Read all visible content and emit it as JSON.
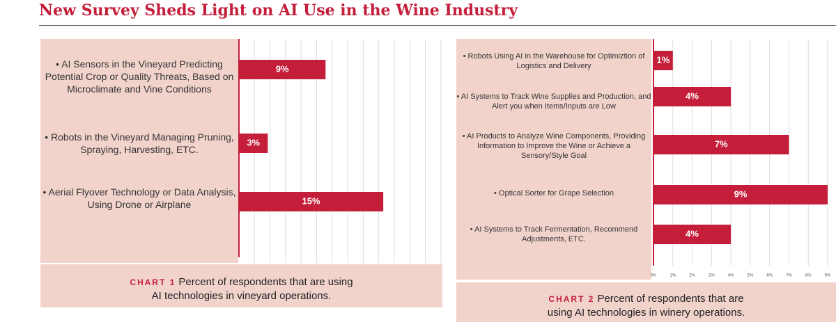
{
  "title": "New Survey Sheds Light on AI Use in the Wine Industry",
  "chart_data": [
    {
      "type": "bar",
      "orientation": "horizontal",
      "chart_label": "CHART 1",
      "caption": "Percent of respondents that are using AI technologies in vineyard operations.",
      "categories": [
        "• AI Sensors in the Vineyard Predicting Potential Crop or Quality Threats, Based on Microclimate and Vine Conditions",
        "• Robots in the Vineyard Managing Pruning, Spraying, Harvesting, ETC.",
        "• Aerial Flyover Technology or Data Analysis, Using Drone or Airplane"
      ],
      "values": [
        9,
        3,
        15
      ],
      "value_labels": [
        "9%",
        "3%",
        "15%"
      ],
      "color": "#c41e3a",
      "xlim": [
        0,
        21
      ]
    },
    {
      "type": "bar",
      "orientation": "horizontal",
      "chart_label": "CHART 2",
      "caption": "Percent of respondents that are using AI technologies in winery operations.",
      "categories": [
        "• Robots Using AI in the Warehouse for Optimiztion of Logistics and Delivery",
        "• AI Systems to Track Wine Supplies and Production, and Alert you when Items/Inputs are Low",
        "• AI Products to Analyze Wine Components, Providing Information to Improve the Wine or Achieve a Sensory/Style Goal",
        "• Optical Sorter for Grape Selection",
        "• AI Systems to Track Fermentation, Recommend Adjustments, ETC."
      ],
      "values": [
        1,
        4,
        7,
        9,
        4
      ],
      "value_labels": [
        "1%",
        "4%",
        "7%",
        "9%",
        "4%"
      ],
      "color": "#c41e3a",
      "xlim": [
        0,
        9
      ],
      "grid": true,
      "xticks": [
        {
          "value": 0,
          "label": "0%"
        },
        {
          "value": 1,
          "label": "1%"
        },
        {
          "value": 2,
          "label": "2%"
        },
        {
          "value": 3,
          "label": "3%"
        },
        {
          "value": 4,
          "label": "4%"
        },
        {
          "value": 5,
          "label": "5%"
        },
        {
          "value": 6,
          "label": "6%"
        },
        {
          "value": 7,
          "label": "7%"
        },
        {
          "value": 8,
          "label": "8%"
        },
        {
          "value": 9,
          "label": "9%"
        }
      ]
    }
  ]
}
